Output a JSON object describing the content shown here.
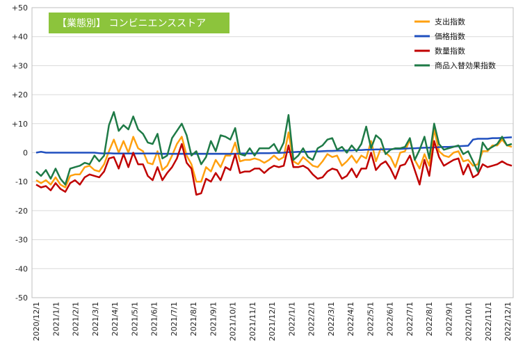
{
  "chart_data": {
    "type": "line",
    "title": "【業態別】 コンビニエンスストア",
    "title_bg": "#8cc43c",
    "ylim": [
      -50,
      50
    ],
    "yticks": [
      50,
      40,
      30,
      20,
      10,
      0,
      -10,
      -20,
      -30,
      -40,
      -50
    ],
    "ytick_labels": [
      "+50",
      "+40",
      "+30",
      "+20",
      "+10",
      "0",
      "-10",
      "-20",
      "-30",
      "-40",
      "-50"
    ],
    "xlim": [
      "2020-12-01",
      "2022-12-01"
    ],
    "xtick_labels": [
      "2020/12/1",
      "2021/1/1",
      "2021/2/1",
      "2021/3/1",
      "2021/4/1",
      "2021/5/1",
      "2021/6/1",
      "2021/7/1",
      "2021/8/1",
      "2021/9/1",
      "2021/10/1",
      "2021/11/1",
      "2021/12/1",
      "2022/1/1",
      "2022/2/1",
      "2022/3/1",
      "2022/4/1",
      "2022/5/1",
      "2022/6/1",
      "2022/7/1",
      "2022/8/1",
      "2022/9/1",
      "2022/10/1",
      "2022/11/1",
      "2022/12/1"
    ],
    "grid": "horizontal",
    "legend_position": "top-right",
    "series": [
      {
        "name": "支出指数",
        "color": "#ffa00f",
        "values": [
          -9.5,
          -10.5,
          -9.5,
          -11,
          -8.5,
          -11,
          -12,
          -8,
          -7.5,
          -7.5,
          -5,
          -4.5,
          -6,
          -6.5,
          -4,
          0.5,
          4.5,
          0,
          4,
          0,
          5.5,
          1.5,
          0.5,
          -3.5,
          -4,
          0.5,
          -6,
          -4.5,
          -1,
          3,
          5.5,
          -1,
          -4,
          -10,
          -10,
          -5,
          -6.5,
          -2.5,
          -5,
          -1,
          -1,
          3.5,
          -3,
          -2.5,
          -2.5,
          -2,
          -2.5,
          -3.5,
          -2.5,
          -1,
          -2.5,
          -1.5,
          7,
          -3,
          -4,
          -1.5,
          -3,
          -4.5,
          -5,
          -3,
          -0.5,
          -1.5,
          -1,
          -4.5,
          -3,
          -1,
          -3.5,
          -1,
          -2,
          4,
          -3,
          1.5,
          0,
          -1.5,
          -5,
          0,
          0.5,
          4.5,
          -2.5,
          -5.5,
          -0.5,
          -4.5,
          8,
          0.5,
          -1,
          -1.5,
          0,
          0.5,
          -3,
          -2.5,
          -4.5,
          -4,
          0.5,
          0.5,
          2.5,
          2.5,
          4.5,
          2.5,
          2
        ]
      },
      {
        "name": "価格指数",
        "color": "#1f4fbf",
        "values": [
          0,
          0.3,
          0,
          0,
          0,
          0,
          0,
          0,
          0,
          0,
          0,
          0,
          0,
          -0.2,
          -0.3,
          -0.2,
          -0.3,
          -0.3,
          -0.3,
          -0.3,
          -0.3,
          -0.3,
          -0.3,
          -0.3,
          -0.3,
          -0.3,
          -0.4,
          -0.4,
          -0.4,
          -0.4,
          -0.4,
          -0.4,
          -0.4,
          -0.4,
          -0.4,
          -0.4,
          -0.4,
          -0.4,
          -0.4,
          -0.4,
          -0.4,
          -0.4,
          -0.3,
          -0.3,
          -0.3,
          -0.3,
          -0.2,
          -0.2,
          -0.2,
          -0.1,
          -0.1,
          0,
          0.2,
          0.2,
          0.3,
          0.3,
          0.3,
          0.4,
          0.4,
          0.5,
          0.6,
          0.6,
          0.7,
          0.7,
          0.8,
          0.8,
          0.9,
          0.9,
          1,
          1,
          1.1,
          1.1,
          1.2,
          1.2,
          1.3,
          1.3,
          1.4,
          1.5,
          1.5,
          1.6,
          1.7,
          1.7,
          1.8,
          1.9,
          2,
          2,
          2.1,
          2.2,
          2.3,
          2.4,
          4.5,
          4.8,
          4.8,
          4.8,
          5,
          5,
          5.1,
          5.2,
          5.3
        ]
      },
      {
        "name": "数量指数",
        "color": "#c00000",
        "values": [
          -11,
          -12,
          -11.5,
          -13,
          -10.5,
          -12.5,
          -13.5,
          -10.5,
          -9.5,
          -11,
          -8.5,
          -7.5,
          -8,
          -8.5,
          -6.5,
          -2,
          -1.5,
          -5.5,
          -0.5,
          -5,
          0,
          -4,
          -4,
          -8,
          -9.5,
          -5,
          -9.5,
          -7,
          -5,
          -2,
          3,
          -3.5,
          -5.5,
          -14.5,
          -14,
          -9,
          -10,
          -7,
          -9.5,
          -5,
          -6,
          -0.5,
          -7,
          -6.5,
          -6.5,
          -5.5,
          -5.5,
          -7,
          -5.5,
          -4.5,
          -5,
          -4.5,
          2.5,
          -5,
          -5,
          -4.5,
          -5.5,
          -7.5,
          -9,
          -8.5,
          -6.5,
          -5.5,
          -6,
          -9,
          -8,
          -5.5,
          -8.5,
          -5.5,
          -5.5,
          0,
          -6,
          -4,
          -3,
          -5.5,
          -9,
          -4.5,
          -4,
          -1,
          -6,
          -11,
          -2.5,
          -8,
          4,
          -1.5,
          -4.5,
          -3.5,
          -2.5,
          -2,
          -7.5,
          -4,
          -8.5,
          -7.5,
          -4,
          -5,
          -4.5,
          -4,
          -3,
          -4,
          -4.5
        ]
      },
      {
        "name": "商品入替効果指数",
        "color": "#1e7a46",
        "values": [
          -6.5,
          -8,
          -6,
          -9,
          -5.5,
          -9,
          -11,
          -5.5,
          -5,
          -4.5,
          -3.5,
          -4,
          -1,
          -3,
          -1,
          9.5,
          14,
          7.5,
          9.5,
          8,
          12.5,
          8,
          6.5,
          3.5,
          3,
          6.5,
          -2,
          -1,
          5,
          7.5,
          10,
          6,
          -1,
          0.5,
          -4,
          -1.5,
          4,
          0.5,
          6,
          5.5,
          4.5,
          8.5,
          -0.5,
          -1,
          1.5,
          -1,
          1.5,
          1.5,
          1.5,
          3,
          0,
          3.5,
          13,
          -2.5,
          -1,
          1.5,
          -1.5,
          -2.5,
          1.5,
          2.5,
          4.5,
          5,
          1,
          2,
          0,
          2.5,
          0.5,
          3,
          9,
          1.5,
          6,
          4.5,
          -0.5,
          1,
          1.5,
          1.5,
          2,
          5,
          -2.5,
          1,
          5.5,
          -2,
          10,
          3,
          1,
          1.5,
          2,
          2.5,
          -0.5,
          0.5,
          -3,
          -6.5,
          3.5,
          1,
          2,
          3,
          5.5,
          2.5,
          3
        ]
      }
    ]
  }
}
